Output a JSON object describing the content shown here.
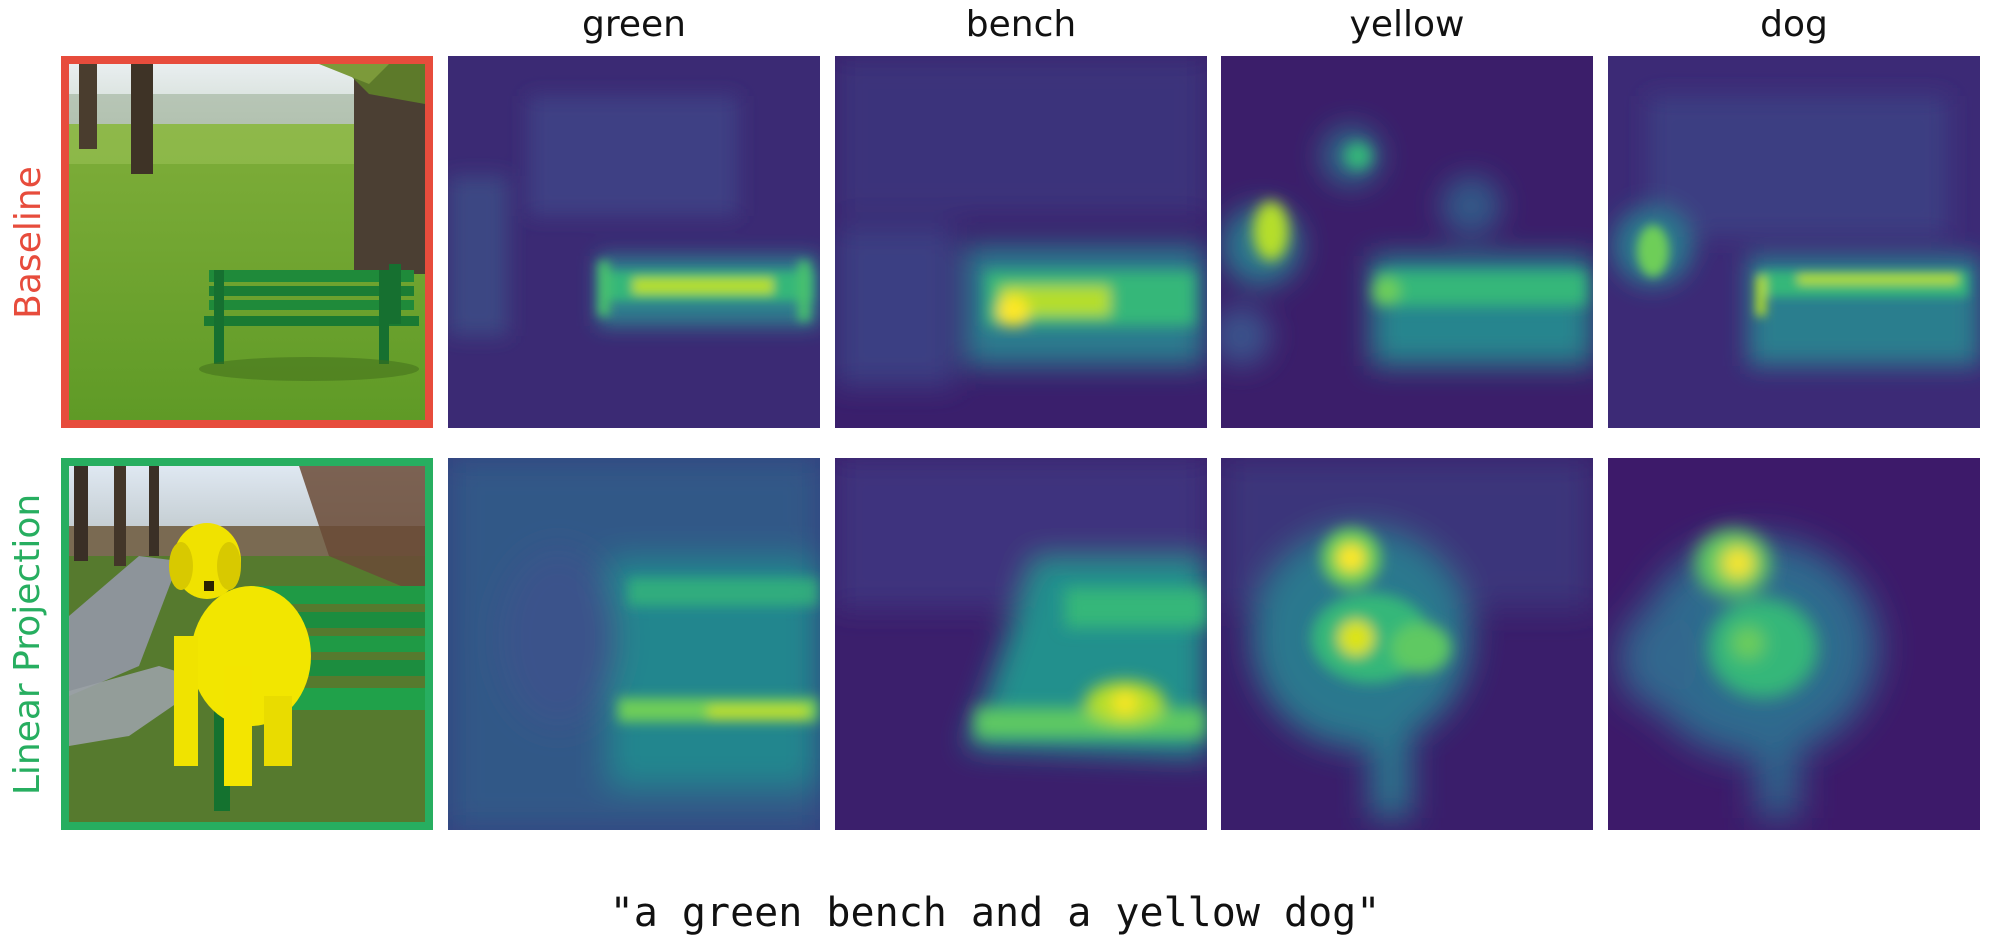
{
  "columns": [
    "green",
    "bench",
    "yellow",
    "dog"
  ],
  "rows": [
    {
      "label": "Baseline",
      "color": "#e74c3c"
    },
    {
      "label": "Linear Projection",
      "color": "#27ae60"
    }
  ],
  "caption": "\"a green bench and a yellow dog\"",
  "heatmap_colormap": "viridis"
}
